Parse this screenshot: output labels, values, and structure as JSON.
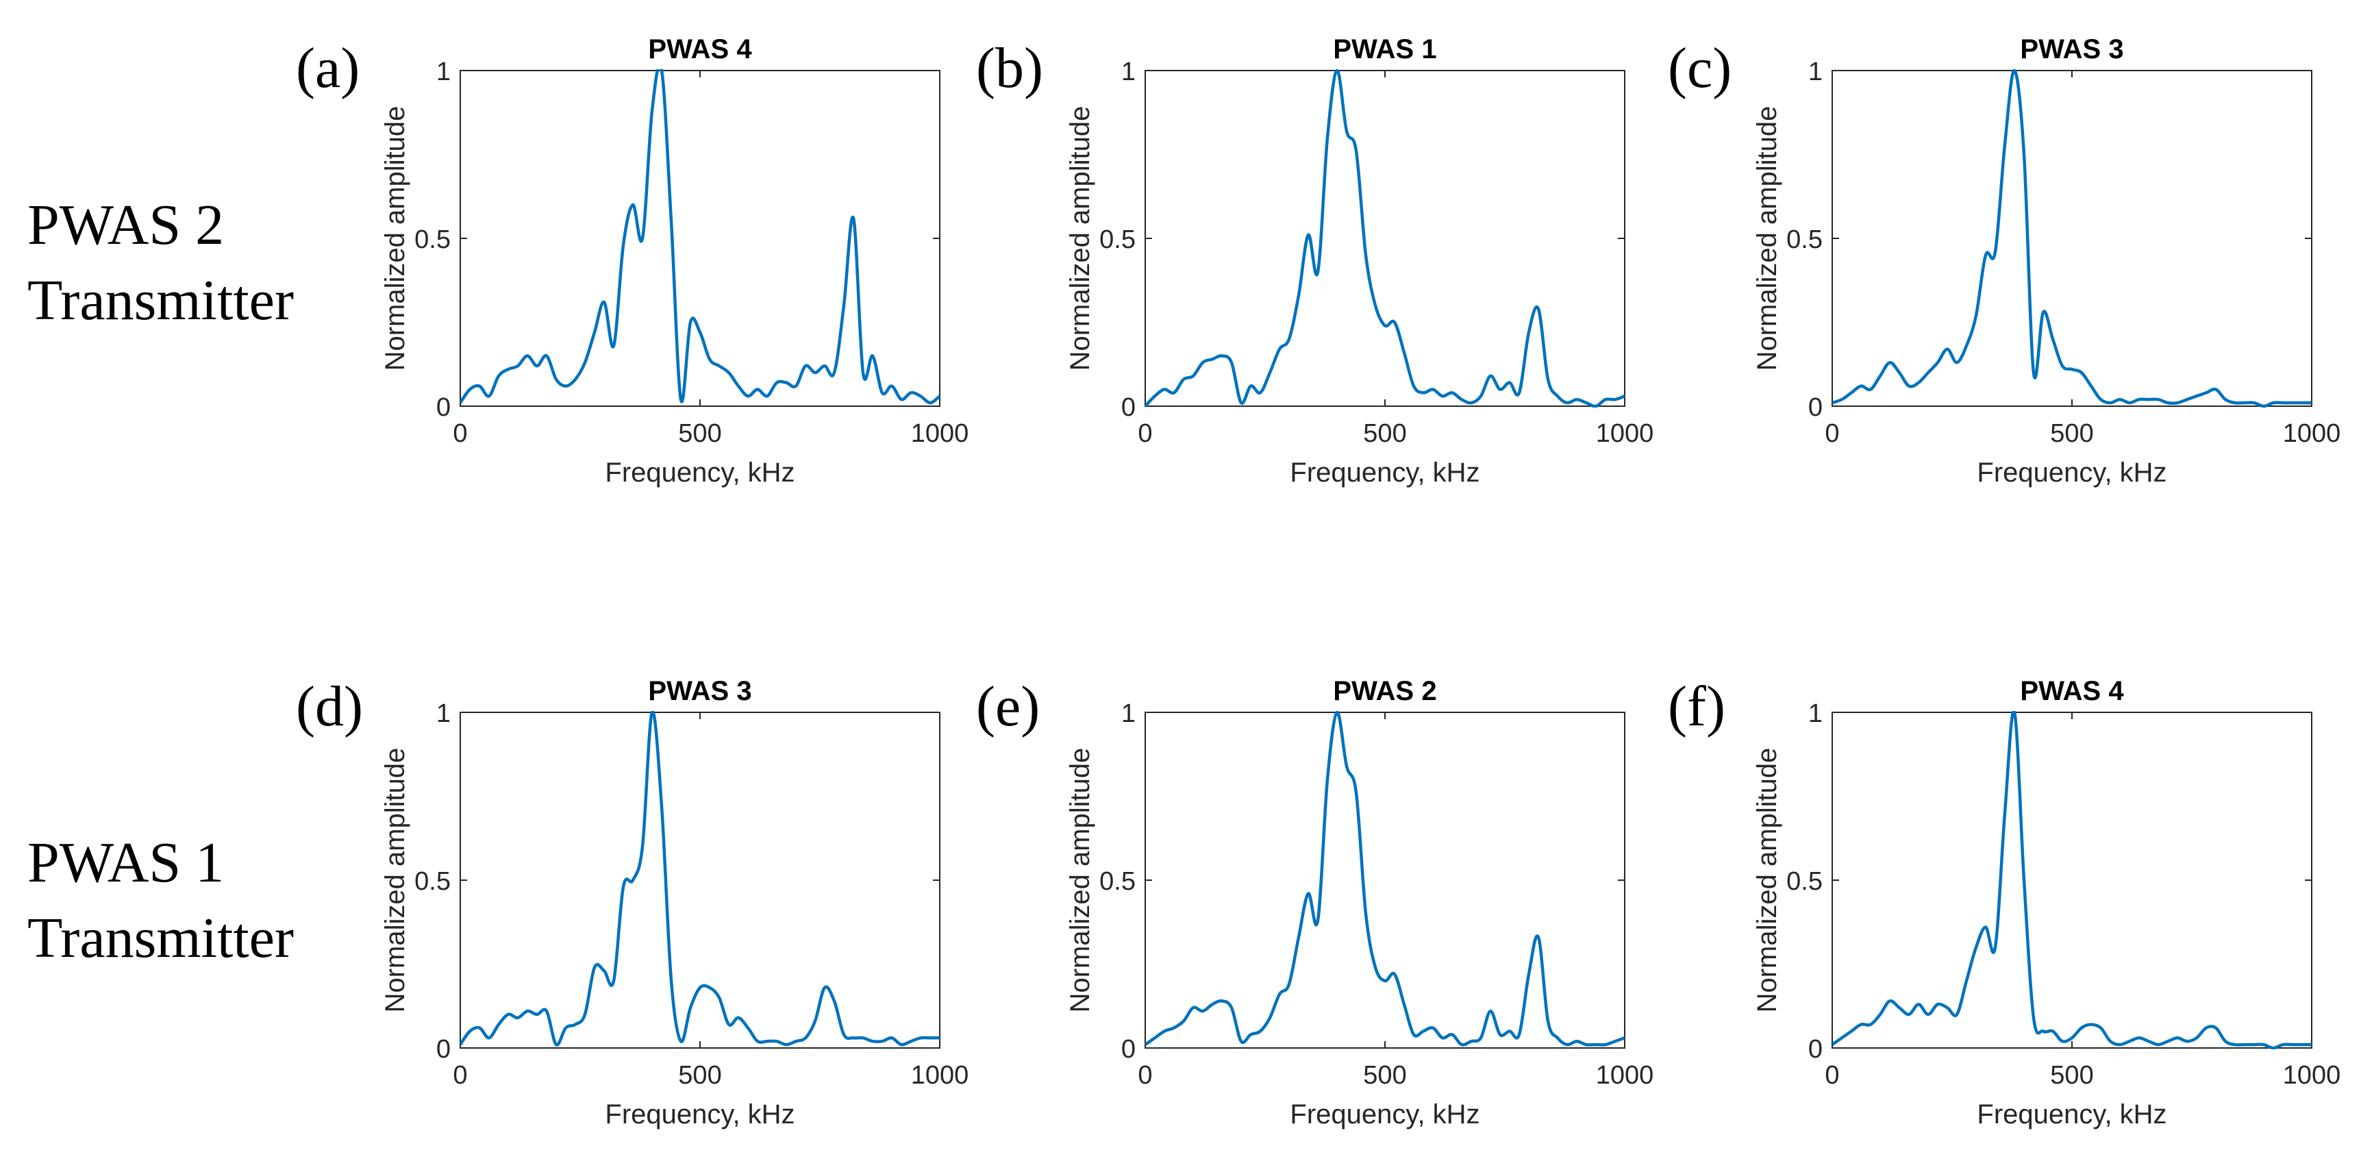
{
  "row_labels": [
    {
      "line1": "PWAS 2",
      "line2": "Transmitter"
    },
    {
      "line1": "PWAS 1",
      "line2": "Transmitter"
    }
  ],
  "panel_letters": [
    "(a)",
    "(b)",
    "(c)",
    "(d)",
    "(e)",
    "(f)"
  ],
  "line_color": "#0072BD",
  "chart_data": [
    {
      "type": "line",
      "title": "PWAS 4",
      "xlabel": "Frequency, kHz",
      "ylabel": "Normalized amplitude",
      "xlim": [
        0,
        1000
      ],
      "ylim": [
        0,
        1
      ],
      "xticks": [
        "0",
        "500",
        "1000"
      ],
      "yticks": [
        "0",
        "0.5",
        "1"
      ],
      "grid": false,
      "series": [
        {
          "x": [
            0,
            20,
            40,
            60,
            80,
            100,
            120,
            140,
            160,
            180,
            200,
            220,
            240,
            260,
            280,
            300,
            320,
            340,
            360,
            380,
            400,
            420,
            440,
            460,
            480,
            500,
            520,
            540,
            560,
            580,
            600,
            620,
            640,
            660,
            680,
            700,
            720,
            740,
            760,
            780,
            800,
            820,
            840,
            860,
            880,
            900,
            920,
            940,
            960,
            980,
            1000
          ],
          "y": [
            0.01,
            0.05,
            0.06,
            0.03,
            0.09,
            0.11,
            0.12,
            0.15,
            0.12,
            0.15,
            0.08,
            0.06,
            0.08,
            0.13,
            0.22,
            0.31,
            0.18,
            0.48,
            0.6,
            0.5,
            0.88,
            1.0,
            0.55,
            0.02,
            0.25,
            0.22,
            0.14,
            0.12,
            0.1,
            0.06,
            0.03,
            0.05,
            0.03,
            0.07,
            0.07,
            0.06,
            0.12,
            0.1,
            0.12,
            0.1,
            0.3,
            0.56,
            0.1,
            0.15,
            0.04,
            0.06,
            0.02,
            0.04,
            0.03,
            0.01,
            0.03
          ]
        }
      ]
    },
    {
      "type": "line",
      "title": "PWAS 1",
      "xlabel": "Frequency, kHz",
      "ylabel": "Normalized amplitude",
      "xlim": [
        0,
        1000
      ],
      "ylim": [
        0,
        1
      ],
      "xticks": [
        "0",
        "500",
        "1000"
      ],
      "yticks": [
        "0",
        "0.5",
        "1"
      ],
      "grid": false,
      "series": [
        {
          "x": [
            0,
            20,
            40,
            60,
            80,
            100,
            120,
            140,
            160,
            180,
            200,
            220,
            240,
            260,
            280,
            300,
            320,
            340,
            360,
            380,
            400,
            420,
            440,
            460,
            480,
            500,
            520,
            540,
            560,
            580,
            600,
            620,
            640,
            660,
            680,
            700,
            720,
            740,
            760,
            780,
            800,
            820,
            840,
            860,
            880,
            900,
            920,
            940,
            960,
            980,
            1000
          ],
          "y": [
            0.0,
            0.03,
            0.05,
            0.04,
            0.08,
            0.09,
            0.13,
            0.14,
            0.15,
            0.13,
            0.01,
            0.06,
            0.04,
            0.1,
            0.17,
            0.2,
            0.33,
            0.51,
            0.4,
            0.8,
            1.0,
            0.82,
            0.76,
            0.45,
            0.3,
            0.24,
            0.25,
            0.16,
            0.06,
            0.04,
            0.05,
            0.03,
            0.04,
            0.02,
            0.01,
            0.03,
            0.09,
            0.05,
            0.07,
            0.04,
            0.22,
            0.29,
            0.08,
            0.03,
            0.01,
            0.02,
            0.01,
            0.0,
            0.02,
            0.02,
            0.03
          ]
        }
      ]
    },
    {
      "type": "line",
      "title": "PWAS 3",
      "xlabel": "Frequency, kHz",
      "ylabel": "Normalized amplitude",
      "xlim": [
        0,
        1000
      ],
      "ylim": [
        0,
        1
      ],
      "xticks": [
        "0",
        "500",
        "1000"
      ],
      "yticks": [
        "0",
        "0.5",
        "1"
      ],
      "grid": false,
      "series": [
        {
          "x": [
            0,
            20,
            40,
            60,
            80,
            100,
            120,
            140,
            160,
            180,
            200,
            220,
            240,
            260,
            280,
            300,
            320,
            340,
            360,
            380,
            400,
            420,
            440,
            460,
            480,
            500,
            520,
            540,
            560,
            580,
            600,
            620,
            640,
            660,
            680,
            700,
            720,
            740,
            760,
            780,
            800,
            820,
            840,
            860,
            880,
            900,
            920,
            940,
            960,
            980,
            1000
          ],
          "y": [
            0.01,
            0.02,
            0.04,
            0.06,
            0.05,
            0.09,
            0.13,
            0.1,
            0.06,
            0.07,
            0.1,
            0.13,
            0.17,
            0.13,
            0.18,
            0.27,
            0.45,
            0.46,
            0.78,
            1.0,
            0.75,
            0.1,
            0.28,
            0.2,
            0.12,
            0.11,
            0.1,
            0.06,
            0.02,
            0.01,
            0.02,
            0.01,
            0.02,
            0.02,
            0.02,
            0.01,
            0.01,
            0.02,
            0.03,
            0.04,
            0.05,
            0.02,
            0.01,
            0.01,
            0.01,
            0.0,
            0.01,
            0.01,
            0.01,
            0.01,
            0.01
          ]
        }
      ]
    },
    {
      "type": "line",
      "title": "PWAS 3",
      "xlabel": "Frequency, kHz",
      "ylabel": "Normalized amplitude",
      "xlim": [
        0,
        1000
      ],
      "ylim": [
        0,
        1
      ],
      "xticks": [
        "0",
        "500",
        "1000"
      ],
      "yticks": [
        "0",
        "0.5",
        "1"
      ],
      "grid": false,
      "series": [
        {
          "x": [
            0,
            20,
            40,
            60,
            80,
            100,
            120,
            140,
            160,
            180,
            200,
            220,
            240,
            260,
            280,
            300,
            320,
            340,
            360,
            380,
            400,
            420,
            440,
            460,
            480,
            500,
            520,
            540,
            560,
            580,
            600,
            620,
            640,
            660,
            680,
            700,
            720,
            740,
            760,
            780,
            800,
            820,
            840,
            860,
            880,
            900,
            920,
            940,
            960,
            980,
            1000
          ],
          "y": [
            0.01,
            0.05,
            0.06,
            0.03,
            0.07,
            0.1,
            0.09,
            0.11,
            0.1,
            0.11,
            0.01,
            0.06,
            0.07,
            0.1,
            0.24,
            0.23,
            0.2,
            0.48,
            0.5,
            0.6,
            1.0,
            0.72,
            0.2,
            0.02,
            0.12,
            0.18,
            0.18,
            0.15,
            0.07,
            0.09,
            0.06,
            0.02,
            0.02,
            0.02,
            0.01,
            0.02,
            0.03,
            0.08,
            0.18,
            0.14,
            0.04,
            0.03,
            0.03,
            0.02,
            0.02,
            0.03,
            0.01,
            0.02,
            0.03,
            0.03,
            0.03
          ]
        }
      ]
    },
    {
      "type": "line",
      "title": "PWAS 2",
      "xlabel": "Frequency, kHz",
      "ylabel": "Normalized amplitude",
      "xlim": [
        0,
        1000
      ],
      "ylim": [
        0,
        1
      ],
      "xticks": [
        "0",
        "500",
        "1000"
      ],
      "yticks": [
        "0",
        "0.5",
        "1"
      ],
      "grid": false,
      "series": [
        {
          "x": [
            0,
            20,
            40,
            60,
            80,
            100,
            120,
            140,
            160,
            180,
            200,
            220,
            240,
            260,
            280,
            300,
            320,
            340,
            360,
            380,
            400,
            420,
            440,
            460,
            480,
            500,
            520,
            540,
            560,
            580,
            600,
            620,
            640,
            660,
            680,
            700,
            720,
            740,
            760,
            780,
            800,
            820,
            840,
            860,
            880,
            900,
            920,
            940,
            960,
            980,
            1000
          ],
          "y": [
            0.01,
            0.03,
            0.05,
            0.06,
            0.08,
            0.12,
            0.11,
            0.13,
            0.14,
            0.12,
            0.02,
            0.04,
            0.05,
            0.09,
            0.16,
            0.19,
            0.33,
            0.46,
            0.38,
            0.8,
            1.0,
            0.84,
            0.76,
            0.4,
            0.24,
            0.2,
            0.22,
            0.13,
            0.04,
            0.05,
            0.06,
            0.03,
            0.04,
            0.01,
            0.02,
            0.03,
            0.11,
            0.04,
            0.05,
            0.04,
            0.22,
            0.33,
            0.08,
            0.03,
            0.01,
            0.02,
            0.01,
            0.01,
            0.01,
            0.02,
            0.03
          ]
        }
      ]
    },
    {
      "type": "line",
      "title": "PWAS 4",
      "xlabel": "Frequency, kHz",
      "ylabel": "Normalized amplitude",
      "xlim": [
        0,
        1000
      ],
      "ylim": [
        0,
        1
      ],
      "xticks": [
        "0",
        "500",
        "1000"
      ],
      "yticks": [
        "0",
        "0.5",
        "1"
      ],
      "grid": false,
      "series": [
        {
          "x": [
            0,
            20,
            40,
            60,
            80,
            100,
            120,
            140,
            160,
            180,
            200,
            220,
            240,
            260,
            280,
            300,
            320,
            340,
            360,
            380,
            400,
            420,
            440,
            460,
            480,
            500,
            520,
            540,
            560,
            580,
            600,
            620,
            640,
            660,
            680,
            700,
            720,
            740,
            760,
            780,
            800,
            820,
            840,
            860,
            880,
            900,
            920,
            940,
            960,
            980,
            1000
          ],
          "y": [
            0.01,
            0.03,
            0.05,
            0.07,
            0.07,
            0.1,
            0.14,
            0.12,
            0.1,
            0.13,
            0.1,
            0.13,
            0.12,
            0.1,
            0.2,
            0.3,
            0.36,
            0.3,
            0.7,
            1.0,
            0.5,
            0.09,
            0.05,
            0.05,
            0.02,
            0.03,
            0.06,
            0.07,
            0.06,
            0.02,
            0.01,
            0.02,
            0.03,
            0.02,
            0.01,
            0.02,
            0.03,
            0.02,
            0.03,
            0.06,
            0.06,
            0.02,
            0.01,
            0.01,
            0.01,
            0.01,
            0.0,
            0.01,
            0.01,
            0.01,
            0.01
          ]
        }
      ]
    }
  ]
}
